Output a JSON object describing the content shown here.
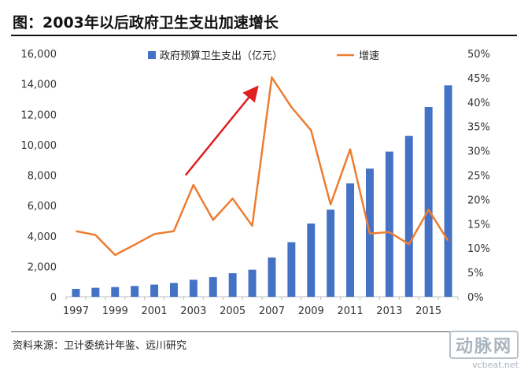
{
  "header": {
    "title": "图：2003年以后政府卫生支出加速增长"
  },
  "footer": {
    "source": "资料来源：卫计委统计年鉴、远川研究",
    "watermark_name": "动脉网",
    "watermark_url": "vcbeat.net"
  },
  "chart_data": {
    "type": "bar",
    "title": "2003年以后政府卫生支出加速增长",
    "categories": [
      "1997",
      "1998",
      "1999",
      "2000",
      "2001",
      "2002",
      "2003",
      "2004",
      "2005",
      "2006",
      "2007",
      "2008",
      "2009",
      "2010",
      "2011",
      "2012",
      "2013",
      "2014",
      "2015",
      "2016"
    ],
    "x_tick_labels": [
      "1997",
      "1999",
      "2001",
      "2003",
      "2005",
      "2007",
      "2009",
      "2011",
      "2013",
      "2015"
    ],
    "series": [
      {
        "name": "政府预算卫生支出（亿元）",
        "type": "bar",
        "axis": "left",
        "color": "#4472C4",
        "values": [
          520,
          590,
          640,
          710,
          800,
          910,
          1120,
          1290,
          1550,
          1780,
          2580,
          3590,
          4820,
          5730,
          7460,
          8430,
          9550,
          10580,
          12480,
          13910
        ]
      },
      {
        "name": "增速",
        "type": "line",
        "axis": "right",
        "color": "#ED7D31",
        "values": [
          13.5,
          12.7,
          8.6,
          10.7,
          12.9,
          13.5,
          23.0,
          15.8,
          20.2,
          14.6,
          45.1,
          39.0,
          34.2,
          19.0,
          30.3,
          13.0,
          13.3,
          10.8,
          17.9,
          11.5
        ]
      }
    ],
    "y_left": {
      "min": 0,
      "max": 16000,
      "ticks": [
        "0",
        "2,000",
        "4,000",
        "6,000",
        "8,000",
        "10,000",
        "12,000",
        "14,000",
        "16,000"
      ]
    },
    "y_right": {
      "min": 0,
      "max": 50,
      "ticks": [
        "0%",
        "5%",
        "10%",
        "15%",
        "20%",
        "25%",
        "30%",
        "35%",
        "40%",
        "45%",
        "50%"
      ]
    },
    "legend_position": "top",
    "annotation": {
      "type": "arrow",
      "color": "#e02020",
      "from_x": "2003",
      "from_value": 8000,
      "to_x": "2006",
      "to_value": 13700
    }
  }
}
